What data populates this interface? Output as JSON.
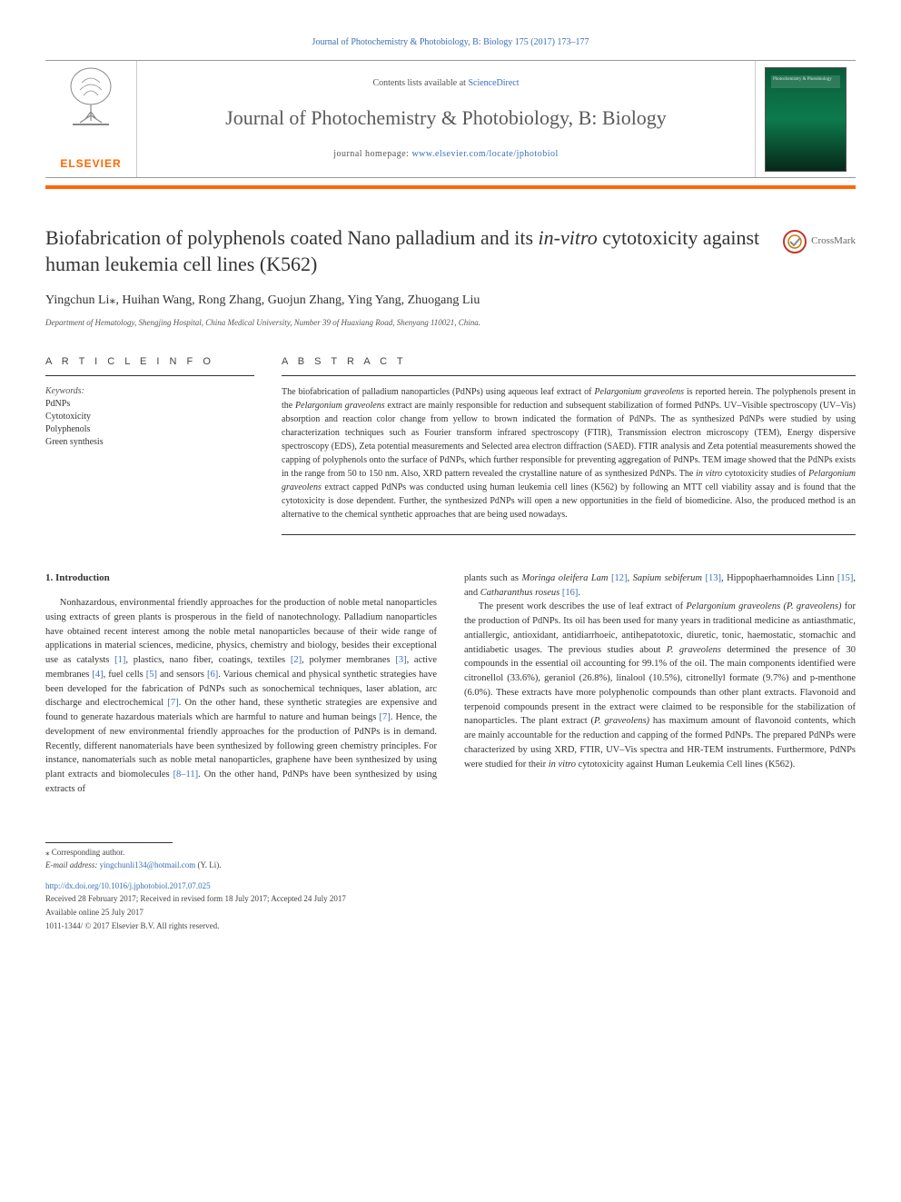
{
  "top_link": "Journal of Photochemistry & Photobiology, B: Biology 175 (2017) 173–177",
  "header": {
    "contents_prefix": "Contents lists available at ",
    "contents_link": "ScienceDirect",
    "journal_name": "Journal of Photochemistry & Photobiology, B: Biology",
    "homepage_prefix": "journal homepage: ",
    "homepage_url": "www.elsevier.com/locate/jphotobiol",
    "elsevier": "ELSEVIER",
    "cover_title": "Photochemistry & Photobiology"
  },
  "crossmark_label": "CrossMark",
  "title_parts": {
    "a": "Biofabrication of polyphenols coated Nano palladium and its ",
    "b": "in-vitro",
    "c": " cytotoxicity against human leukemia cell lines (K562)"
  },
  "authors": "Yingchun Li⁎, Huihan Wang, Rong Zhang, Guojun Zhang, Ying Yang, Zhuogang Liu",
  "affiliation": "Department of Hematology, Shengjing Hospital, China Medical University, Number 39 of Huaxiang Road, Shenyang 110021, China.",
  "section_heads": {
    "info": "A R T I C L E   I N F O",
    "abs": "A B S T R A C T"
  },
  "keywords": {
    "label": "Keywords:",
    "items": [
      "PdNPs",
      "Cytotoxicity",
      "Polyphenols",
      "Green synthesis"
    ]
  },
  "abstract_html": "The biofabrication of palladium nanoparticles (PdNPs) using aqueous leaf extract of <span class=\"italic\">Pelargonium graveolens</span> is reported herein. The polyphenols present in the <span class=\"italic\">Pelargonium graveolens</span> extract are mainly responsible for reduction and subsequent stabilization of formed PdNPs. UV–Visible spectroscopy (UV–Vis) absorption and reaction color change from yellow to brown indicated the formation of PdNPs. The as synthesized PdNPs were studied by using characterization techniques such as Fourier transform infrared spectroscopy (FTIR), Transmission electron microscopy (TEM), Energy dispersive spectroscopy (EDS), Zeta potential measurements and Selected area electron diffraction (SAED). FTIR analysis and Zeta potential measurements showed the capping of polyphenols onto the surface of PdNPs, which further responsible for preventing aggregation of PdNPs. TEM image showed that the PdNPs exists in the range from 50 to 150 nm. Also, XRD pattern revealed the crystalline nature of as synthesized PdNPs. The <span class=\"italic\">in vitro</span> cytotoxicity studies of <span class=\"italic\">Pelargonium graveolens</span> extract capped PdNPs was conducted using human leukemia cell lines (K562) by following an MTT cell viability assay and is found that the cytotoxicity is dose dependent. Further, the synthesized PdNPs will open a new opportunities in the field of biomedicine. Also, the produced method is an alternative to the chemical synthetic approaches that are being used nowadays.",
  "body": {
    "intro_head": "1. Introduction",
    "left_html": "Nonhazardous, environmental friendly approaches for the production of noble metal nanoparticles using extracts of green plants is prosperous in the field of nanotechnology. Palladium nanoparticles have obtained recent interest among the noble metal nanoparticles because of their wide range of applications in material sciences, medicine, physics, chemistry and biology, besides their exceptional use as catalysts <span class=\"ref\">[1]</span>, plastics, nano fiber, coatings, textiles <span class=\"ref\">[2]</span>, polymer membranes <span class=\"ref\">[3]</span>, active membranes <span class=\"ref\">[4]</span>, fuel cells <span class=\"ref\">[5]</span> and sensors <span class=\"ref\">[6]</span>. Various chemical and physical synthetic strategies have been developed for the fabrication of PdNPs such as sonochemical techniques, laser ablation, arc discharge and electrochemical <span class=\"ref\">[7]</span>. On the other hand, these synthetic strategies are expensive and found to generate hazardous materials which are harmful to nature and human beings <span class=\"ref\">[7]</span>. Hence, the development of new environmental friendly approaches for the production of PdNPs is in demand. Recently, different nanomaterials have been synthesized by following green chemistry principles. For instance, nanomaterials such as noble metal nanoparticles, graphene have been synthesized by using plant extracts and biomolecules <span class=\"ref\">[8–11]</span>. On the other hand, PdNPs have been synthesized by using extracts of",
    "right1_html": "plants such as <span class=\"italic\">Moringa oleifera Lam</span> <span class=\"ref\">[12]</span>, <span class=\"italic\">Sapium sebiferum</span> <span class=\"ref\">[13]</span>, Hippophaerhamnoides Linn <span class=\"ref\">[15]</span>, and <span class=\"italic\">Catharanthus roseus</span> <span class=\"ref\">[16]</span>.",
    "right2_html": "The present work describes the use of leaf extract of <span class=\"italic\">Pelargonium graveolens (P. graveolens)</span> for the production of PdNPs. Its oil has been used for many years in traditional medicine as antiasthmatic, antiallergic, antioxidant, antidiarrhoeic, antihepatotoxic, diuretic, tonic, haemostatic, stomachic and antidiabetic usages. The previous studies about <span class=\"italic\">P. graveolens</span> determined the presence of 30 compounds in the essential oil accounting for 99.1% of the oil. The main components identified were citronellol (33.6%), geraniol (26.8%), linalool (10.5%), citronellyl formate (9.7%) and p-menthone (6.0%). These extracts have more polyphenolic compounds than other plant extracts. Flavonoid and terpenoid compounds present in the extract were claimed to be responsible for the stabilization of nanoparticles. The plant extract (<span class=\"italic\">P. graveolens)</span> has maximum amount of flavonoid contents, which are mainly accountable for the reduction and capping of the formed PdNPs. The prepared PdNPs were characterized by using XRD, FTIR, UV–Vis spectra and HR-TEM instruments. Furthermore, PdNPs were studied for their <span class=\"italic\">in vitro</span> cytotoxicity against Human Leukemia Cell lines (K562)."
  },
  "footer": {
    "corr": "⁎ Corresponding author.",
    "email_label": "E-mail address: ",
    "email": "yingchunli134@hotmail.com",
    "email_suffix": " (Y. Li).",
    "doi": "http://dx.doi.org/10.1016/j.jphotobiol.2017.07.025",
    "received": "Received 28 February 2017; Received in revised form 18 July 2017; Accepted 24 July 2017",
    "online": "Available online 25 July 2017",
    "issn": "1011-1344/ © 2017 Elsevier B.V. All rights reserved."
  },
  "colors": {
    "link": "#3a6fb7",
    "accent": "#ff6600",
    "text": "#333333"
  }
}
